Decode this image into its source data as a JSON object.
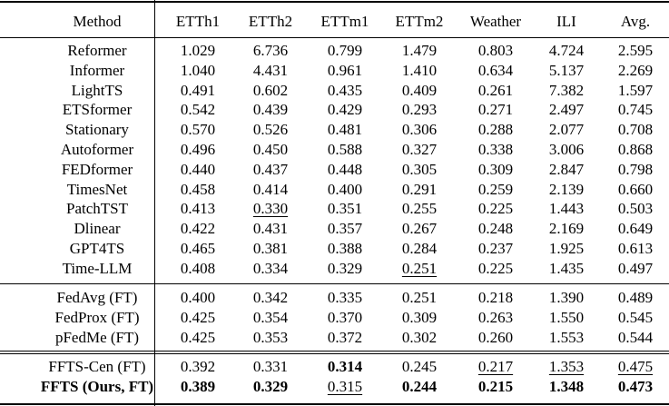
{
  "table": {
    "header": [
      "Method",
      "ETTh1",
      "ETTh2",
      "ETTm1",
      "ETTm2",
      "Weather",
      "ILI",
      "Avg."
    ],
    "groups": [
      [
        [
          "Reformer",
          "1.029",
          "6.736",
          "0.799",
          "1.479",
          "0.803",
          "4.724",
          "2.595"
        ],
        [
          "Informer",
          "1.040",
          "4.431",
          "0.961",
          "1.410",
          "0.634",
          "5.137",
          "2.269"
        ],
        [
          "LightTS",
          "0.491",
          "0.602",
          "0.435",
          "0.409",
          "0.261",
          "7.382",
          "1.597"
        ],
        [
          "ETSformer",
          "0.542",
          "0.439",
          "0.429",
          "0.293",
          "0.271",
          "2.497",
          "0.745"
        ],
        [
          "Stationary",
          "0.570",
          "0.526",
          "0.481",
          "0.306",
          "0.288",
          "2.077",
          "0.708"
        ],
        [
          "Autoformer",
          "0.496",
          "0.450",
          "0.588",
          "0.327",
          "0.338",
          "3.006",
          "0.868"
        ],
        [
          "FEDformer",
          "0.440",
          "0.437",
          "0.448",
          "0.305",
          "0.309",
          "2.847",
          "0.798"
        ],
        [
          "TimesNet",
          "0.458",
          "0.414",
          "0.400",
          "0.291",
          "0.259",
          "2.139",
          "0.660"
        ],
        [
          "PatchTST",
          "0.413",
          "0.330",
          "0.351",
          "0.255",
          "0.225",
          "1.443",
          "0.503"
        ],
        [
          "Dlinear",
          "0.422",
          "0.431",
          "0.357",
          "0.267",
          "0.248",
          "2.169",
          "0.649"
        ],
        [
          "GPT4TS",
          "0.465",
          "0.381",
          "0.388",
          "0.284",
          "0.237",
          "1.925",
          "0.613"
        ],
        [
          "Time-LLM",
          "0.408",
          "0.334",
          "0.329",
          "0.251",
          "0.225",
          "1.435",
          "0.497"
        ]
      ],
      [
        [
          "FedAvg (FT)",
          "0.400",
          "0.342",
          "0.335",
          "0.251",
          "0.218",
          "1.390",
          "0.489"
        ],
        [
          "FedProx (FT)",
          "0.425",
          "0.354",
          "0.370",
          "0.309",
          "0.263",
          "1.550",
          "0.545"
        ],
        [
          "pFedMe (FT)",
          "0.425",
          "0.353",
          "0.372",
          "0.302",
          "0.260",
          "1.553",
          "0.544"
        ]
      ],
      [
        [
          "FFTS-Cen (FT)",
          "0.392",
          "0.331",
          "0.314",
          "0.245",
          "0.217",
          "1.353",
          "0.475"
        ],
        [
          "FFTS (Ours, FT)",
          "0.389",
          "0.329",
          "0.315",
          "0.244",
          "0.215",
          "1.348",
          "0.473"
        ]
      ]
    ]
  }
}
